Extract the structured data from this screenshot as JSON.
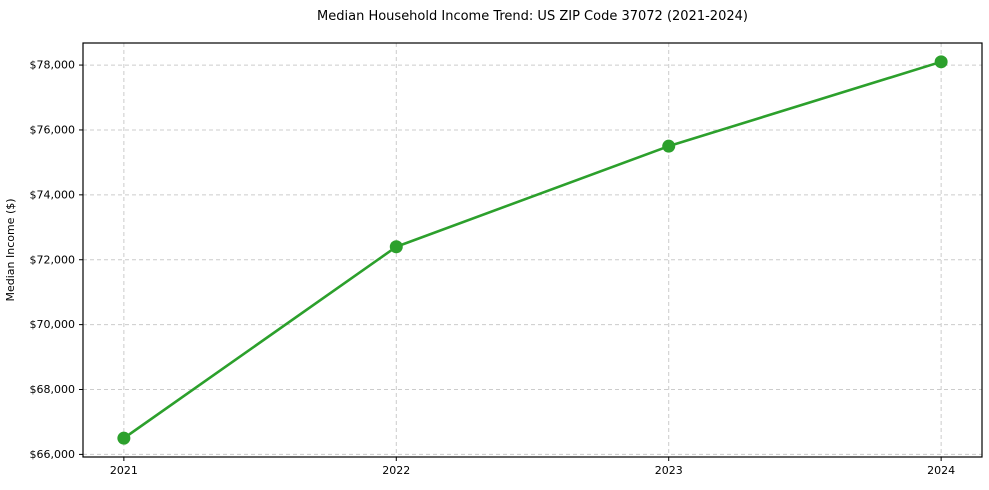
{
  "figure": {
    "background_color": "#ffffff"
  },
  "chart_data": {
    "type": "line",
    "title": "Median Household Income Trend: US ZIP Code 37072 (2021-2024)",
    "xlabel": "",
    "ylabel": "Median Income ($)",
    "x": [
      2021,
      2022,
      2023,
      2024
    ],
    "x_tick_labels": [
      "2021",
      "2022",
      "2023",
      "2024"
    ],
    "series": [
      {
        "name": "Median Income",
        "values": [
          66500,
          72400,
          75500,
          78100
        ],
        "color": "#2ca02c",
        "marker": "circle",
        "line_width": 2.6,
        "marker_radius": 6.5
      }
    ],
    "yticks": [
      66000,
      68000,
      70000,
      72000,
      74000,
      76000,
      78000
    ],
    "ytick_labels": [
      "$66,000",
      "$68,000",
      "$70,000",
      "$72,000",
      "$74,000",
      "$76,000",
      "$78,000"
    ],
    "ytick_prefix": "$",
    "xlim": [
      2020.85,
      2024.15
    ],
    "ylim": [
      65920,
      78680
    ],
    "grid": true,
    "grid_color": "#cccccc",
    "grid_style": "dashed",
    "legend": "none",
    "axis_color": "#000000",
    "text_color": "#000000"
  }
}
